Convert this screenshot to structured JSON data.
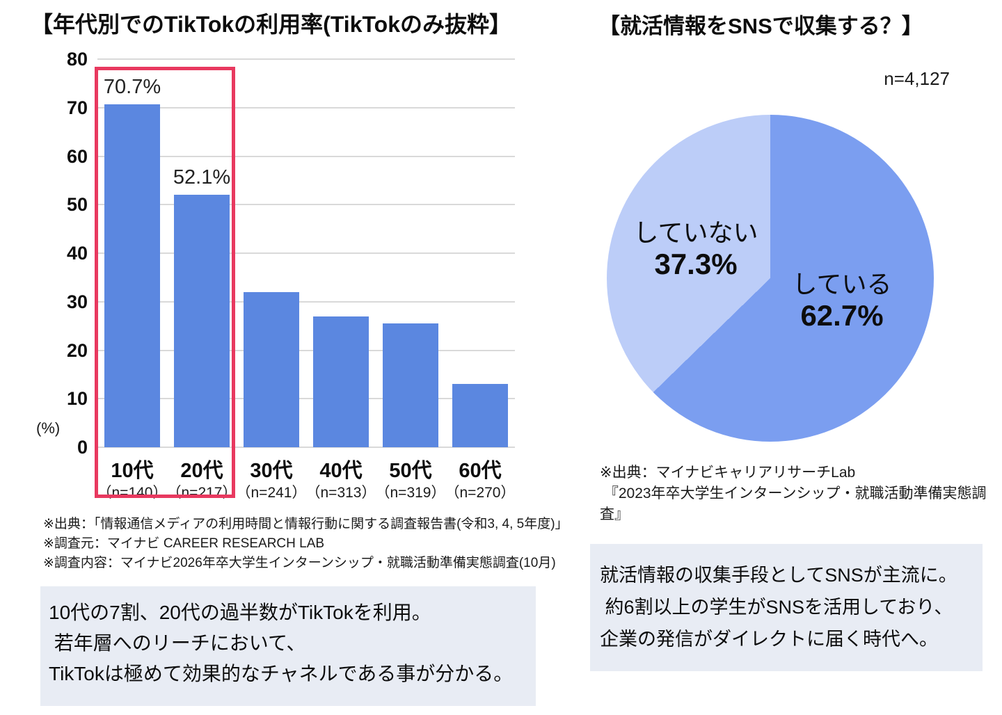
{
  "colors": {
    "bar": "#5b87e0",
    "pie_yes": "#7b9ef0",
    "pie_no": "#bccdf8",
    "highlight_frame": "#e8395f",
    "box_bg": "#e8ecf4",
    "gridline": "#d9d9d9"
  },
  "chart_data": [
    {
      "type": "bar",
      "title": "【年代別でのTikTokの利用率(TikTokのみ抜粋】",
      "categories": [
        "10代",
        "20代",
        "30代",
        "40代",
        "50代",
        "60代"
      ],
      "category_sublabels": [
        "（n=140）",
        "（n=217）",
        "（n=241）",
        "（n=313）",
        "（n=319）",
        "（n=270）"
      ],
      "values": [
        70.7,
        52.1,
        32,
        27,
        25.5,
        13
      ],
      "value_labels": [
        "70.7%",
        "52.1%",
        "",
        "",
        "",
        ""
      ],
      "xlabel": "",
      "ylabel": "(%)",
      "ylim": [
        0,
        80
      ],
      "ytick_interval": 10,
      "grid": "horizontal gridlines on",
      "legend": "none",
      "highlight": "10代 and 20代 bars framed with red rectangle"
    },
    {
      "type": "pie",
      "title": "【就活情報をSNSで収集する？】",
      "sample_size": "n=4,127",
      "labels": [
        "している",
        "していない"
      ],
      "values": [
        62.7,
        37.3
      ],
      "value_labels": [
        "62.7%",
        "37.3%"
      ],
      "start_angle": "12 o'clock, clockwise",
      "legend": "labels inside slices"
    }
  ],
  "left_chart": {
    "footnotes": [
      "※出典：「情報通信メディアの利用時間と情報行動に関する調査報告書(令和3, 4, 5年度)」",
      "※調査元：マイナビ CAREER RESEARCH LAB",
      "※調査内容：マイナビ2026年卒大学生インターンシップ・就職活動準備実態調査(10月)"
    ],
    "insight_lines": [
      "10代の7割、20代の過半数がTikTokを利用。",
      " 若年層へのリーチにおいて、",
      "TikTokは極めて効果的なチャネルである事が分かる。"
    ]
  },
  "right_chart": {
    "source_lines": [
      "※出典：マイナビキャリアリサーチLab",
      " 『2023年卒大学生インターンシップ・就職活動準備実態調査』"
    ],
    "insight_lines": [
      "就活情報の収集手段としてSNSが主流に。",
      " 約6割以上の学生がSNSを活用しており、",
      "企業の発信がダイレクトに届く時代へ。"
    ]
  }
}
